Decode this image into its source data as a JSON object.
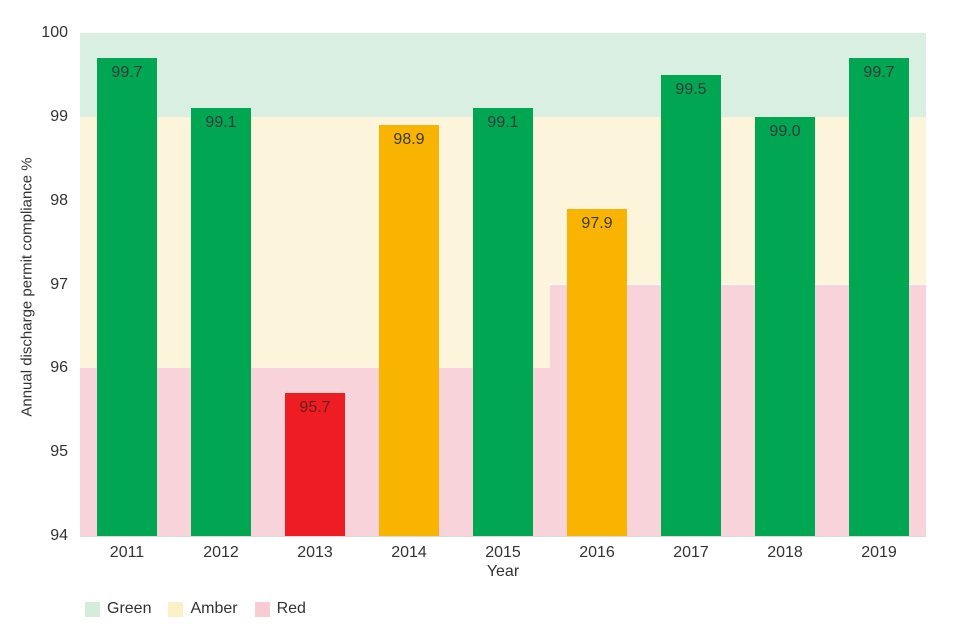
{
  "chart_data": {
    "type": "bar",
    "title": "",
    "xlabel": "Year",
    "ylabel": "Annual discharge permit compliance %",
    "ylim": [
      94,
      100
    ],
    "yticks": [
      94,
      95,
      96,
      97,
      98,
      99,
      100
    ],
    "grid": false,
    "legend_position": "bottom-left",
    "categories": [
      "2011",
      "2012",
      "2013",
      "2014",
      "2015",
      "2016",
      "2017",
      "2018",
      "2019"
    ],
    "values": [
      99.7,
      99.1,
      95.7,
      98.9,
      99.1,
      97.9,
      99.5,
      99.0,
      99.7
    ],
    "value_labels": [
      "99.7",
      "99.1",
      "95.7",
      "98.9",
      "99.1",
      "97.9",
      "99.5",
      "99.0",
      "99.7"
    ],
    "statuses": [
      "green",
      "green",
      "red",
      "amber",
      "green",
      "amber",
      "green",
      "green",
      "green"
    ],
    "green_threshold": 99,
    "red_threshold_segments": [
      {
        "from_year": "2011",
        "to_year": "2015",
        "red_below": 96
      },
      {
        "from_year": "2016",
        "to_year": "2019",
        "red_below": 97
      }
    ],
    "colors": {
      "bar_green": "#00a651",
      "bar_amber": "#f8b400",
      "bar_red": "#ee1c23",
      "band_green": "#d9efe1",
      "band_amber": "#fcf5dc",
      "band_red": "#f8d3d9",
      "label_text": "#3a3a3a",
      "label_text_on_red": "#6b1d1d",
      "axis_text": "#333333"
    }
  },
  "legend": {
    "items": [
      {
        "label": "Green",
        "color": "#d5ecdb"
      },
      {
        "label": "Amber",
        "color": "#fcf0c8"
      },
      {
        "label": "Red",
        "color": "#f9cbd2"
      }
    ]
  }
}
